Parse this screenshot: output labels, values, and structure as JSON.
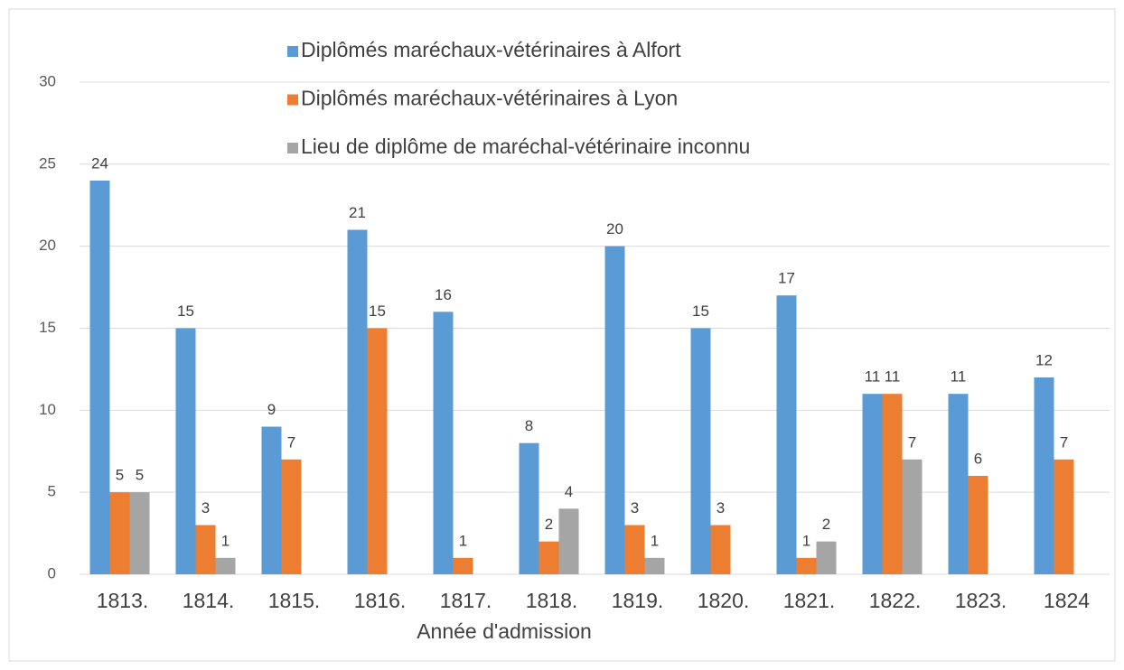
{
  "chart_data": {
    "type": "bar",
    "categories": [
      "1813.",
      "1814.",
      "1815.",
      "1816.",
      "1817.",
      "1818.",
      "1819.",
      "1820.",
      "1821.",
      "1822.",
      "1823.",
      "1824"
    ],
    "series": [
      {
        "name": "Diplômés maréchaux-vétérinaires à Alfort",
        "color": "#5b9bd5",
        "values": [
          24,
          15,
          9,
          21,
          16,
          8,
          20,
          15,
          17,
          11,
          11,
          12
        ]
      },
      {
        "name": "Diplômés maréchaux-vétérinaires à Lyon",
        "color": "#ed7d31",
        "values": [
          5,
          3,
          7,
          15,
          1,
          2,
          3,
          3,
          1,
          11,
          6,
          7
        ]
      },
      {
        "name": "Lieu de diplôme de maréchal-vétérinaire inconnu",
        "color": "#a5a5a5",
        "values": [
          5,
          1,
          null,
          null,
          null,
          4,
          1,
          null,
          2,
          7,
          null,
          null
        ]
      }
    ],
    "x_label": "Année d'admission",
    "ylim": [
      0,
      30
    ],
    "yticks": [
      0,
      5,
      10,
      15,
      20,
      25,
      30
    ],
    "grid": true,
    "legend": "top"
  }
}
